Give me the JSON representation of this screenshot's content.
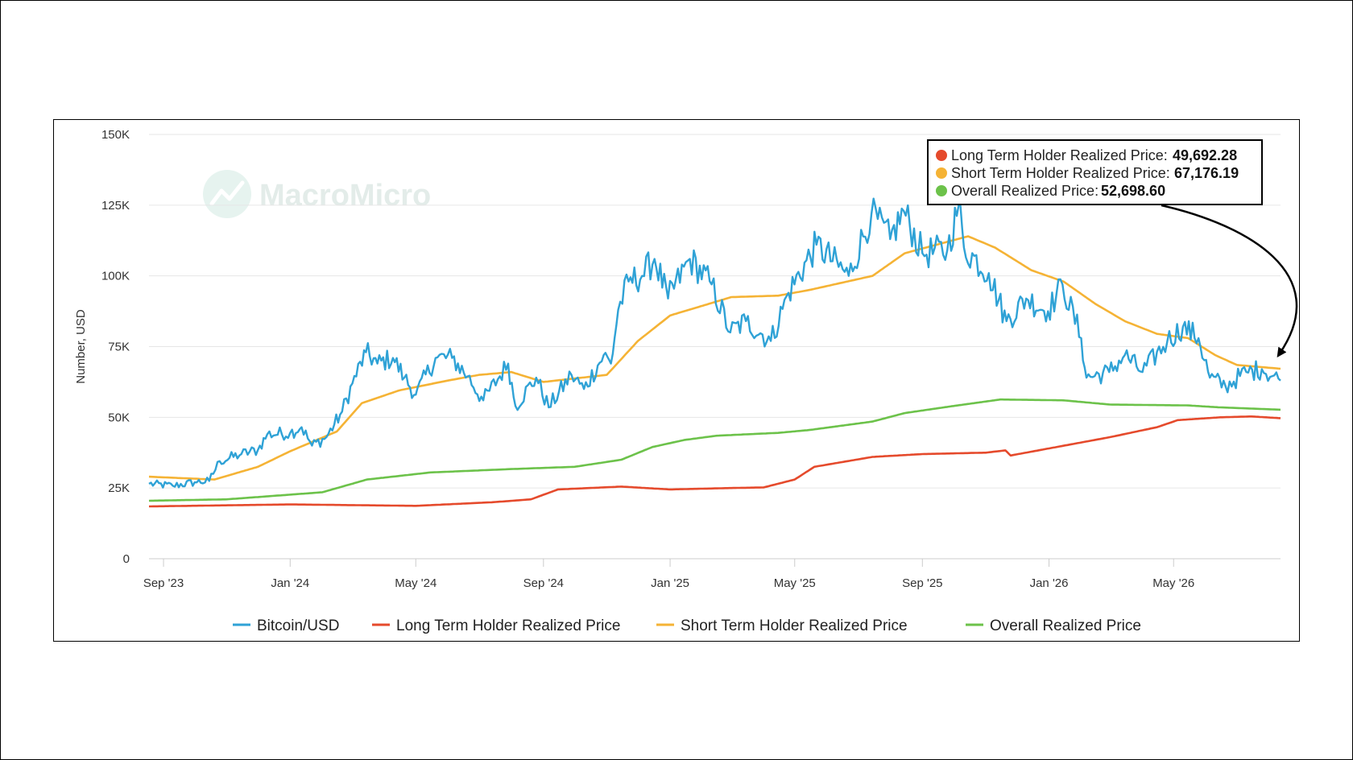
{
  "watermark": {
    "text": "MacroMicro"
  },
  "chart_data": {
    "type": "line",
    "ylabel": "Number, USD",
    "xlabel": "",
    "ylim": [
      0,
      150000
    ],
    "yticks": [
      0,
      25000,
      50000,
      75000,
      100000,
      125000,
      150000
    ],
    "ytick_labels": [
      "0",
      "25K",
      "50K",
      "75K",
      "100K",
      "125K",
      "150K"
    ],
    "xlim": [
      "2023-08-18",
      "2026-08-12"
    ],
    "xticks": [
      "2023-09-01",
      "2024-01-01",
      "2024-05-01",
      "2024-09-01",
      "2025-01-01",
      "2025-05-01",
      "2025-09-01",
      "2026-01-01",
      "2026-05-01"
    ],
    "xtick_labels": [
      "Sep '23",
      "Jan '24",
      "May '24",
      "Sep '24",
      "Jan '25",
      "May '25",
      "Sep '25",
      "Jan '26",
      "May '26"
    ],
    "grid": true,
    "legend_position": "bottom",
    "series": [
      {
        "name": "Bitcoin/USD",
        "color": "#2fa2d6",
        "points": [
          [
            "2023-08-18",
            26500
          ],
          [
            "2023-09-10",
            25800
          ],
          [
            "2023-10-01",
            27000
          ],
          [
            "2023-10-15",
            27500
          ],
          [
            "2023-10-25",
            34500
          ],
          [
            "2023-11-15",
            37000
          ],
          [
            "2023-12-01",
            38500
          ],
          [
            "2023-12-10",
            44000
          ],
          [
            "2024-01-01",
            44500
          ],
          [
            "2024-01-12",
            46500
          ],
          [
            "2024-01-22",
            40000
          ],
          [
            "2024-02-05",
            43000
          ],
          [
            "2024-02-20",
            52000
          ],
          [
            "2024-03-01",
            62000
          ],
          [
            "2024-03-14",
            73000
          ],
          [
            "2024-03-25",
            69000
          ],
          [
            "2024-04-09",
            71000
          ],
          [
            "2024-04-20",
            64000
          ],
          [
            "2024-05-01",
            58000
          ],
          [
            "2024-05-20",
            71000
          ],
          [
            "2024-06-05",
            71000
          ],
          [
            "2024-06-20",
            64500
          ],
          [
            "2024-07-05",
            56000
          ],
          [
            "2024-07-29",
            69000
          ],
          [
            "2024-08-05",
            54000
          ],
          [
            "2024-08-25",
            64000
          ],
          [
            "2024-09-06",
            53500
          ],
          [
            "2024-09-28",
            65000
          ],
          [
            "2024-10-10",
            60000
          ],
          [
            "2024-10-29",
            72000
          ],
          [
            "2024-11-05",
            69000
          ],
          [
            "2024-11-12",
            88000
          ],
          [
            "2024-11-22",
            98000
          ],
          [
            "2024-12-05",
            100000
          ],
          [
            "2024-12-17",
            106000
          ],
          [
            "2024-12-30",
            92000
          ],
          [
            "2025-01-20",
            106000
          ],
          [
            "2025-02-10",
            97000
          ],
          [
            "2025-02-28",
            80000
          ],
          [
            "2025-03-15",
            84000
          ],
          [
            "2025-04-08",
            77000
          ],
          [
            "2025-04-25",
            94000
          ],
          [
            "2025-05-22",
            111000
          ],
          [
            "2025-06-22",
            100000
          ],
          [
            "2025-07-14",
            122000
          ],
          [
            "2025-08-01",
            113000
          ],
          [
            "2025-08-14",
            123000
          ],
          [
            "2025-09-01",
            108000
          ],
          [
            "2025-09-25",
            109000
          ],
          [
            "2025-10-06",
            125000
          ],
          [
            "2025-10-11",
            110000
          ],
          [
            "2025-11-04",
            101000
          ],
          [
            "2025-11-21",
            84000
          ],
          [
            "2025-12-10",
            92000
          ],
          [
            "2025-12-31",
            87500
          ],
          [
            "2026-01-14",
            97000
          ],
          [
            "2026-02-01",
            78000
          ],
          [
            "2026-02-06",
            64000
          ],
          [
            "2026-02-28",
            66000
          ],
          [
            "2026-03-15",
            72000
          ],
          [
            "2026-04-01",
            66000
          ],
          [
            "2026-04-25",
            77000
          ],
          [
            "2026-05-10",
            82000
          ],
          [
            "2026-05-25",
            78000
          ],
          [
            "2026-06-05",
            64000
          ],
          [
            "2026-06-20",
            61000
          ],
          [
            "2026-07-10",
            66000
          ],
          [
            "2026-07-25",
            67000
          ],
          [
            "2026-08-12",
            63000
          ]
        ]
      },
      {
        "name": "Long Term Holder Realized Price",
        "color": "#e54a2c",
        "points": [
          [
            "2023-08-18",
            18500
          ],
          [
            "2024-01-01",
            19200
          ],
          [
            "2024-05-01",
            18700
          ],
          [
            "2024-07-15",
            20000
          ],
          [
            "2024-08-20",
            21000
          ],
          [
            "2024-09-15",
            24500
          ],
          [
            "2024-11-15",
            25500
          ],
          [
            "2025-01-01",
            24500
          ],
          [
            "2025-03-01",
            25000
          ],
          [
            "2025-04-01",
            25200
          ],
          [
            "2025-05-01",
            28000
          ],
          [
            "2025-05-20",
            32500
          ],
          [
            "2025-07-15",
            36000
          ],
          [
            "2025-09-01",
            37000
          ],
          [
            "2025-11-01",
            37500
          ],
          [
            "2025-11-20",
            38300
          ],
          [
            "2025-11-25",
            36500
          ],
          [
            "2026-01-01",
            39000
          ],
          [
            "2026-03-01",
            43000
          ],
          [
            "2026-04-15",
            46500
          ],
          [
            "2026-05-05",
            49000
          ],
          [
            "2026-06-15",
            50000
          ],
          [
            "2026-07-15",
            50300
          ],
          [
            "2026-08-12",
            49692.28
          ]
        ]
      },
      {
        "name": "Short Term Holder Realized Price",
        "color": "#f5b335",
        "points": [
          [
            "2023-08-18",
            29000
          ],
          [
            "2023-10-20",
            28000
          ],
          [
            "2023-12-01",
            32500
          ],
          [
            "2024-01-01",
            38000
          ],
          [
            "2024-02-15",
            45000
          ],
          [
            "2024-03-10",
            55000
          ],
          [
            "2024-04-15",
            59500
          ],
          [
            "2024-06-01",
            63000
          ],
          [
            "2024-07-01",
            65000
          ],
          [
            "2024-08-01",
            66000
          ],
          [
            "2024-09-01",
            62500
          ],
          [
            "2024-11-01",
            65000
          ],
          [
            "2024-12-01",
            77000
          ],
          [
            "2025-01-01",
            86000
          ],
          [
            "2025-03-01",
            92500
          ],
          [
            "2025-04-15",
            93000
          ],
          [
            "2025-05-15",
            95000
          ],
          [
            "2025-07-15",
            100000
          ],
          [
            "2025-08-15",
            108000
          ],
          [
            "2025-10-15",
            114000
          ],
          [
            "2025-11-10",
            110000
          ],
          [
            "2025-12-15",
            102000
          ],
          [
            "2026-01-15",
            98000
          ],
          [
            "2026-02-15",
            90000
          ],
          [
            "2026-03-15",
            84000
          ],
          [
            "2026-04-15",
            79500
          ],
          [
            "2026-05-15",
            78000
          ],
          [
            "2026-06-10",
            72000
          ],
          [
            "2026-07-01",
            68500
          ],
          [
            "2026-08-12",
            67176.19
          ]
        ]
      },
      {
        "name": "Overall Realized Price",
        "color": "#6cc24a",
        "points": [
          [
            "2023-08-18",
            20500
          ],
          [
            "2023-11-01",
            21000
          ],
          [
            "2024-02-01",
            23500
          ],
          [
            "2024-03-15",
            28000
          ],
          [
            "2024-05-15",
            30500
          ],
          [
            "2024-08-01",
            31700
          ],
          [
            "2024-10-01",
            32500
          ],
          [
            "2024-11-15",
            35000
          ],
          [
            "2024-12-15",
            39500
          ],
          [
            "2025-01-15",
            42000
          ],
          [
            "2025-02-15",
            43500
          ],
          [
            "2025-04-15",
            44500
          ],
          [
            "2025-05-15",
            45500
          ],
          [
            "2025-07-15",
            48500
          ],
          [
            "2025-08-15",
            51500
          ],
          [
            "2025-10-01",
            54000
          ],
          [
            "2025-11-15",
            56300
          ],
          [
            "2026-01-15",
            56000
          ],
          [
            "2026-03-01",
            54500
          ],
          [
            "2026-05-15",
            54200
          ],
          [
            "2026-06-15",
            53500
          ],
          [
            "2026-08-12",
            52698.6
          ]
        ]
      }
    ],
    "tooltip": {
      "items": [
        {
          "label": "Long Term Holder Realized Price:",
          "value": "49,692.28",
          "color": "#e54a2c"
        },
        {
          "label": "Short Term Holder Realized Price:",
          "value": "67,176.19",
          "color": "#f5b335"
        },
        {
          "label": "Overall Realized Price:",
          "value": "52,698.60",
          "color": "#6cc24a"
        }
      ]
    }
  }
}
